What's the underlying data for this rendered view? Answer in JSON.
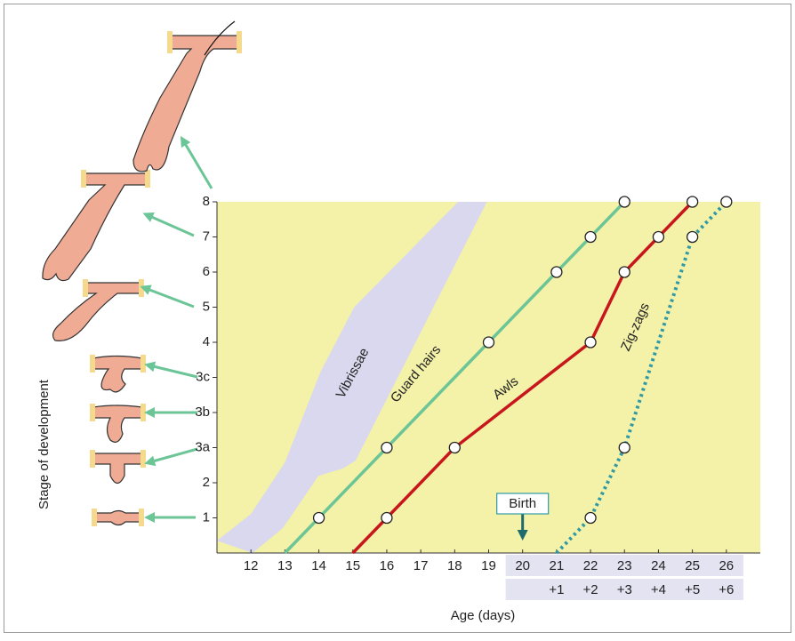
{
  "chart_data": {
    "type": "line",
    "xlabel": "Age (days)",
    "ylabel": "Stage of development",
    "xlim": [
      11,
      27
    ],
    "ylim": [
      0,
      10
    ],
    "xticks": [
      12,
      13,
      14,
      15,
      16,
      17,
      18,
      19,
      20,
      21,
      22,
      23,
      24,
      25,
      26
    ],
    "x2ticks": [
      {
        "value": 21,
        "label": "+1"
      },
      {
        "value": 22,
        "label": "+2"
      },
      {
        "value": 23,
        "label": "+3"
      },
      {
        "value": 24,
        "label": "+4"
      },
      {
        "value": 25,
        "label": "+5"
      },
      {
        "value": 26,
        "label": "+6"
      }
    ],
    "yticks": [
      1,
      2,
      {
        "value": 3,
        "label": "3a"
      },
      {
        "value": 4,
        "label": "3b"
      },
      {
        "value": 5,
        "label": "3c"
      },
      {
        "value": 6,
        "label": "4"
      },
      {
        "value": 7,
        "label": "5"
      },
      {
        "value": 8,
        "label": "6"
      },
      {
        "value": 9,
        "label": "7"
      },
      {
        "value": 10,
        "label": "8"
      }
    ],
    "background": "#f4f1a8",
    "band": {
      "name": "Vibrissae",
      "color": "#d9d8ee",
      "x": [
        11,
        12,
        13,
        14.05,
        15.04,
        18.1,
        18.95,
        15.08,
        14.72,
        13.99,
        12.94,
        12.05
      ],
      "values": [
        0.35,
        1.11,
        2.58,
        5.16,
        7.0,
        10,
        10,
        2.63,
        2.41,
        2.2,
        0.71,
        0
      ]
    },
    "series": [
      {
        "name": "Guard hairs",
        "color": "#6cc597",
        "style": "solid",
        "x": [
          13,
          14,
          16,
          19,
          21,
          22,
          23
        ],
        "values": [
          0,
          1,
          3,
          6,
          8,
          9,
          10
        ]
      },
      {
        "name": "Awls",
        "color": "#c8161d",
        "style": "solid",
        "x": [
          15,
          16,
          18,
          22,
          23,
          24,
          25
        ],
        "values": [
          0,
          1,
          3,
          6,
          8,
          9,
          10
        ]
      },
      {
        "name": "Zig-zags",
        "color": "#2f9aa6",
        "style": "dotted",
        "x": [
          21,
          22,
          23,
          25,
          26
        ],
        "values": [
          0,
          1,
          3,
          9,
          10
        ]
      }
    ],
    "annotation": {
      "text": "Birth",
      "x": 20
    }
  }
}
